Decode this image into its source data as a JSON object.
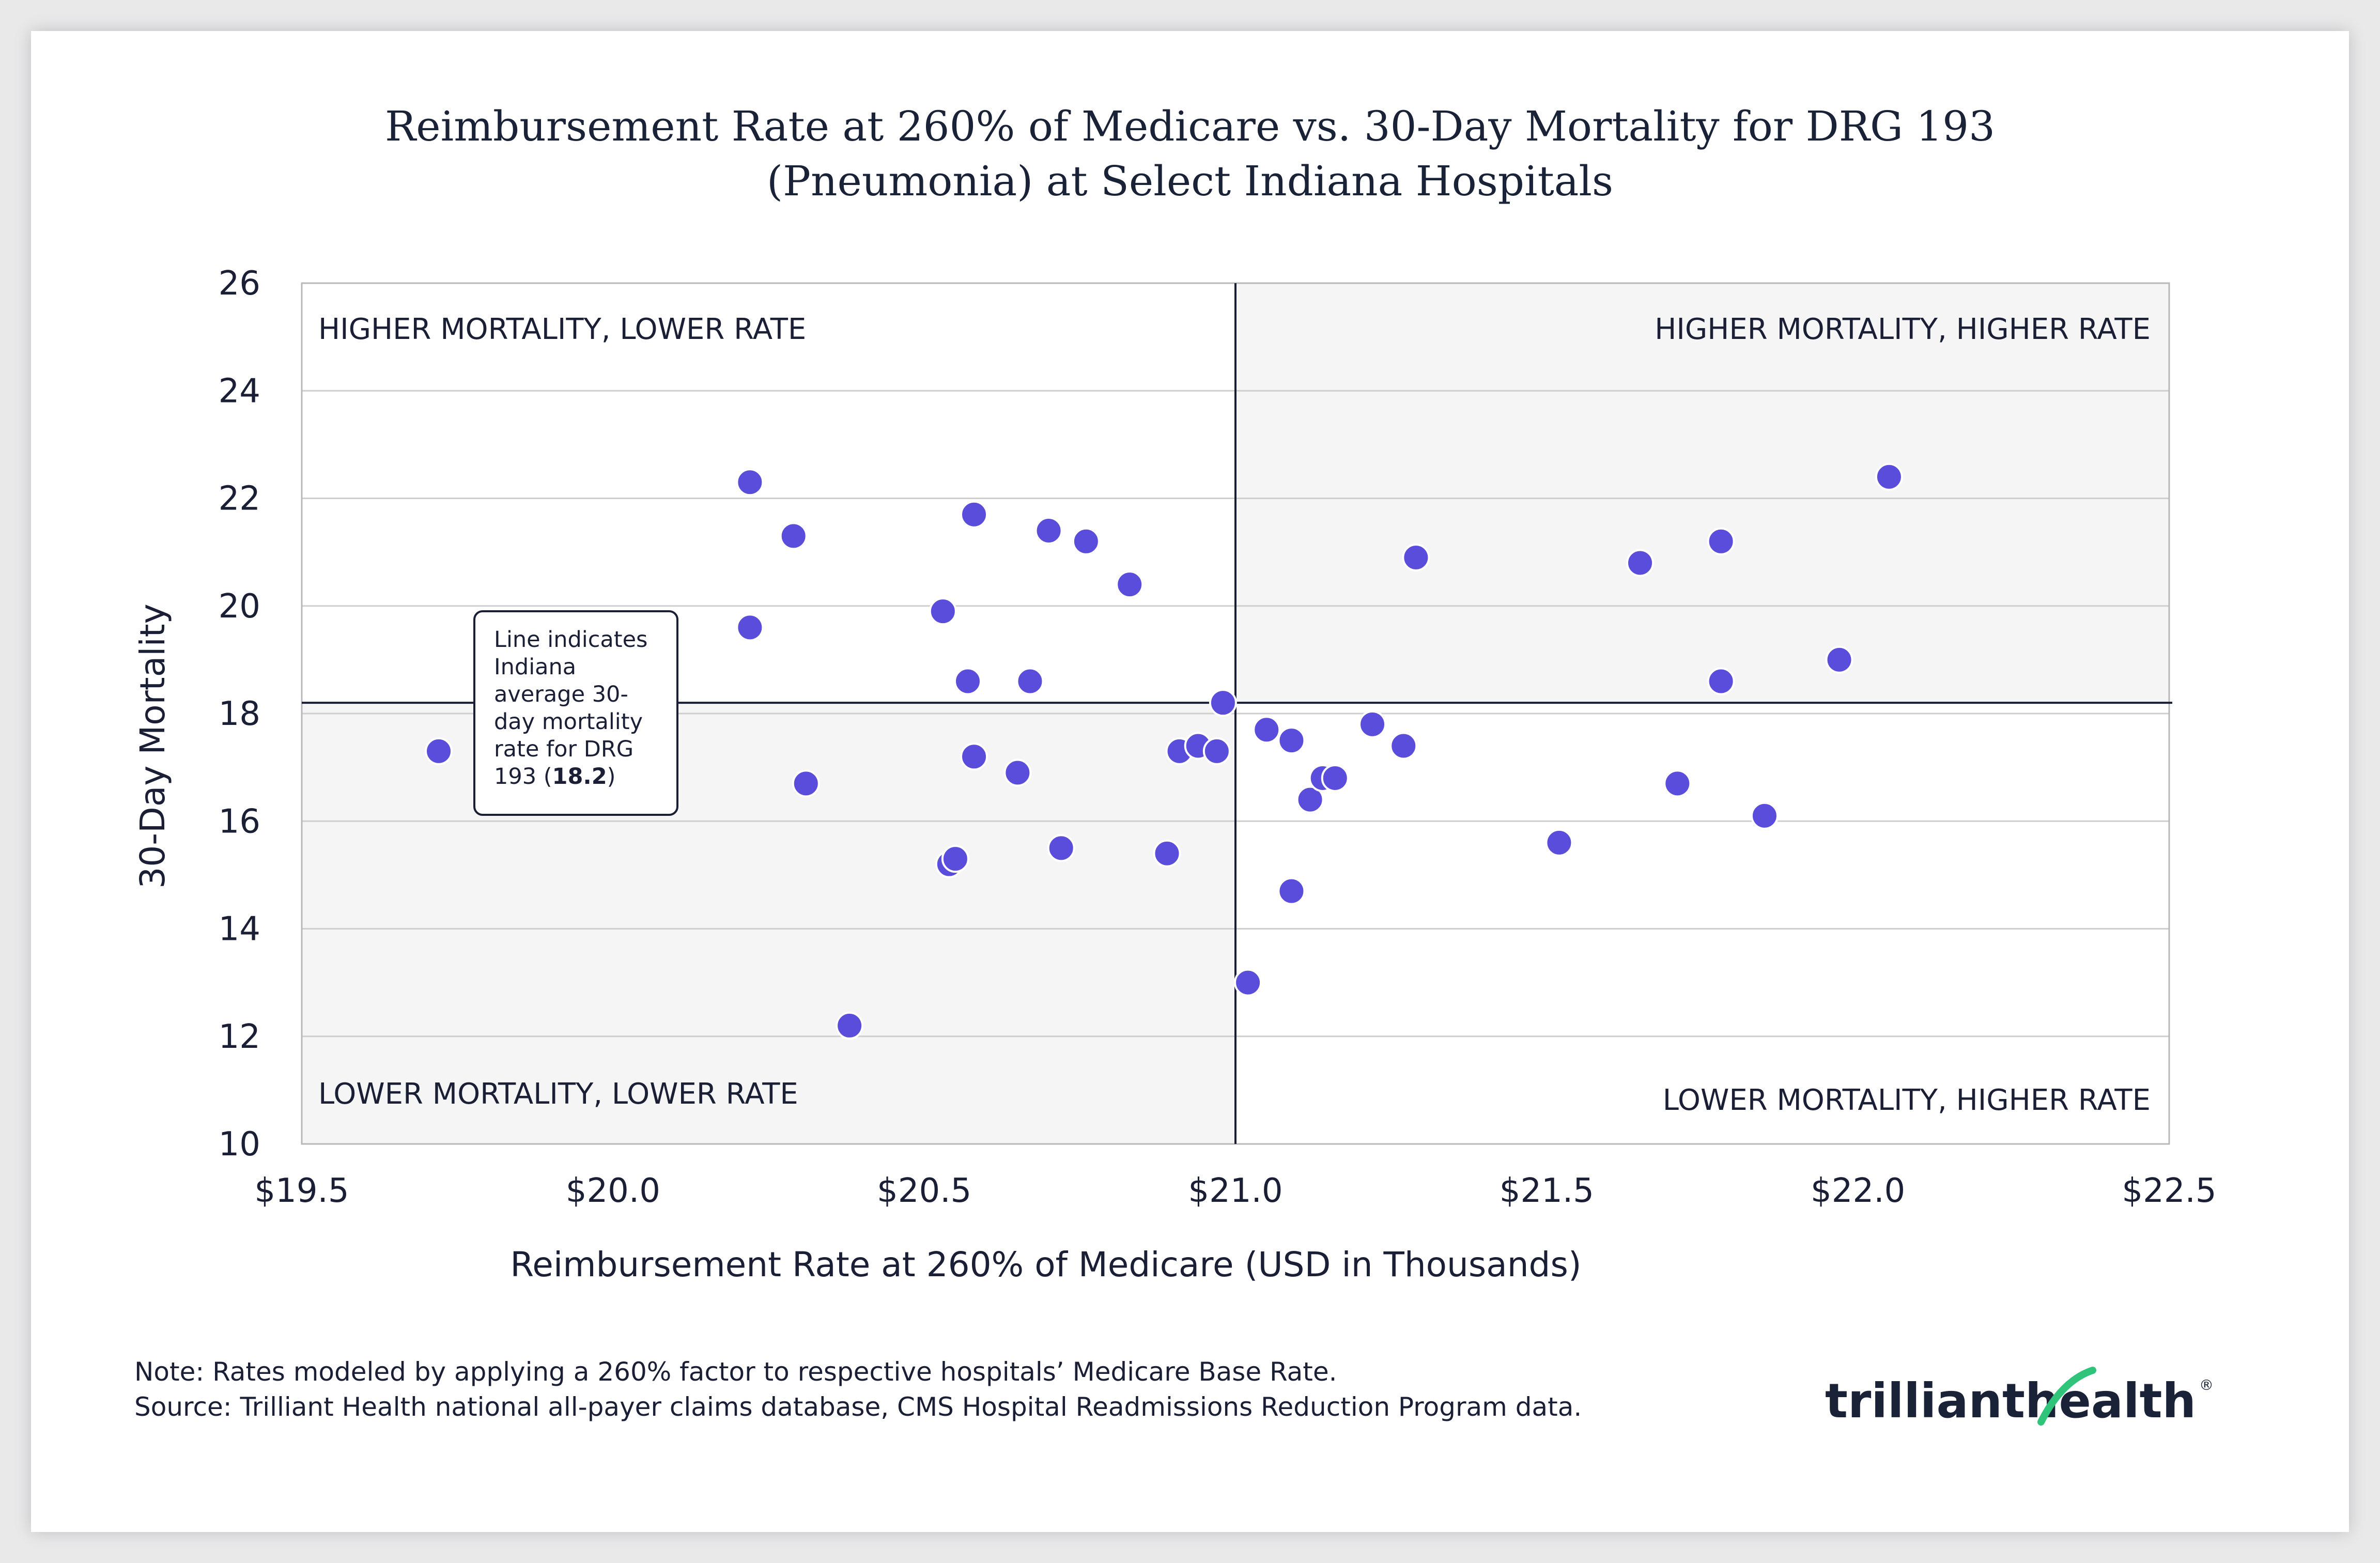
{
  "chart_data": {
    "type": "scatter",
    "title_lines": [
      "Reimbursement Rate at 260% of Medicare vs. 30-Day Mortality for DRG 193",
      "(Pneumonia) at Select Indiana Hospitals"
    ],
    "xlabel": "Reimbursement Rate at 260% of Medicare (USD in Thousands)",
    "ylabel": "30-Day Mortality",
    "xlim": [
      19.5,
      22.5
    ],
    "ylim": [
      10,
      26
    ],
    "x_ticks": [
      19.5,
      20.0,
      20.5,
      21.0,
      21.5,
      22.0,
      22.5
    ],
    "x_tick_labels": [
      "$19.5",
      "$20.0",
      "$20.5",
      "$21.0",
      "$21.5",
      "$22.0",
      "$22.5"
    ],
    "y_ticks": [
      10,
      12,
      14,
      16,
      18,
      20,
      22,
      24,
      26
    ],
    "y_tick_labels": [
      "10",
      "12",
      "14",
      "16",
      "18",
      "20",
      "22",
      "24",
      "26"
    ],
    "grid": true,
    "reference_lines": {
      "x": 21.0,
      "y": 18.2
    },
    "quadrant_labels": {
      "top_left": "HIGHER MORTALITY, LOWER RATE",
      "top_right": "HIGHER MORTALITY, HIGHER RATE",
      "bottom_left": "LOWER MORTALITY, LOWER RATE",
      "bottom_right": "LOWER MORTALITY, HIGHER RATE"
    },
    "annotation": {
      "lines": [
        "Line indicates",
        "Indiana",
        "average 30-",
        "day mortality",
        "rate for DRG"
      ],
      "last_line_prefix": "193 (",
      "highlight_value": "18.2",
      "last_line_suffix": ")"
    },
    "series": [
      {
        "name": "Indiana Hospitals",
        "color": "#5b4ddb",
        "points": [
          [
            19.72,
            17.3
          ],
          [
            20.22,
            22.3
          ],
          [
            20.22,
            19.6
          ],
          [
            20.29,
            21.3
          ],
          [
            20.31,
            16.7
          ],
          [
            20.38,
            12.2
          ],
          [
            20.53,
            19.9
          ],
          [
            20.54,
            15.2
          ],
          [
            20.55,
            15.3
          ],
          [
            20.57,
            18.6
          ],
          [
            20.58,
            21.7
          ],
          [
            20.58,
            17.2
          ],
          [
            20.65,
            16.9
          ],
          [
            20.67,
            18.6
          ],
          [
            20.7,
            21.4
          ],
          [
            20.72,
            15.5
          ],
          [
            20.76,
            21.2
          ],
          [
            20.83,
            20.4
          ],
          [
            20.89,
            15.4
          ],
          [
            20.91,
            17.3
          ],
          [
            20.94,
            17.4
          ],
          [
            20.97,
            17.3
          ],
          [
            20.98,
            18.2
          ],
          [
            21.02,
            13.0
          ],
          [
            21.05,
            17.7
          ],
          [
            21.09,
            17.5
          ],
          [
            21.09,
            14.7
          ],
          [
            21.12,
            16.4
          ],
          [
            21.14,
            16.8
          ],
          [
            21.16,
            16.8
          ],
          [
            21.22,
            17.8
          ],
          [
            21.27,
            17.4
          ],
          [
            21.29,
            20.9
          ],
          [
            21.52,
            15.6
          ],
          [
            21.65,
            20.8
          ],
          [
            21.71,
            16.7
          ],
          [
            21.78,
            21.2
          ],
          [
            21.78,
            18.6
          ],
          [
            21.85,
            16.1
          ],
          [
            21.97,
            19.0
          ],
          [
            22.05,
            22.4
          ]
        ]
      }
    ]
  },
  "footer": {
    "note": "Note: Rates modeled by applying a 260% factor to respective hospitals’ Medicare Base Rate.",
    "source": "Source: Trilliant Health national all-payer claims database, CMS Hospital Readmissions Reduction Program data.",
    "logo_part1": "trilliant",
    "logo_part2": "health",
    "logo_mark": "®"
  },
  "colors": {
    "point": "#5b4ddb",
    "shade": "#f5f5f5",
    "text": "#1a1f36",
    "logo_accent": "#2fc47a"
  }
}
